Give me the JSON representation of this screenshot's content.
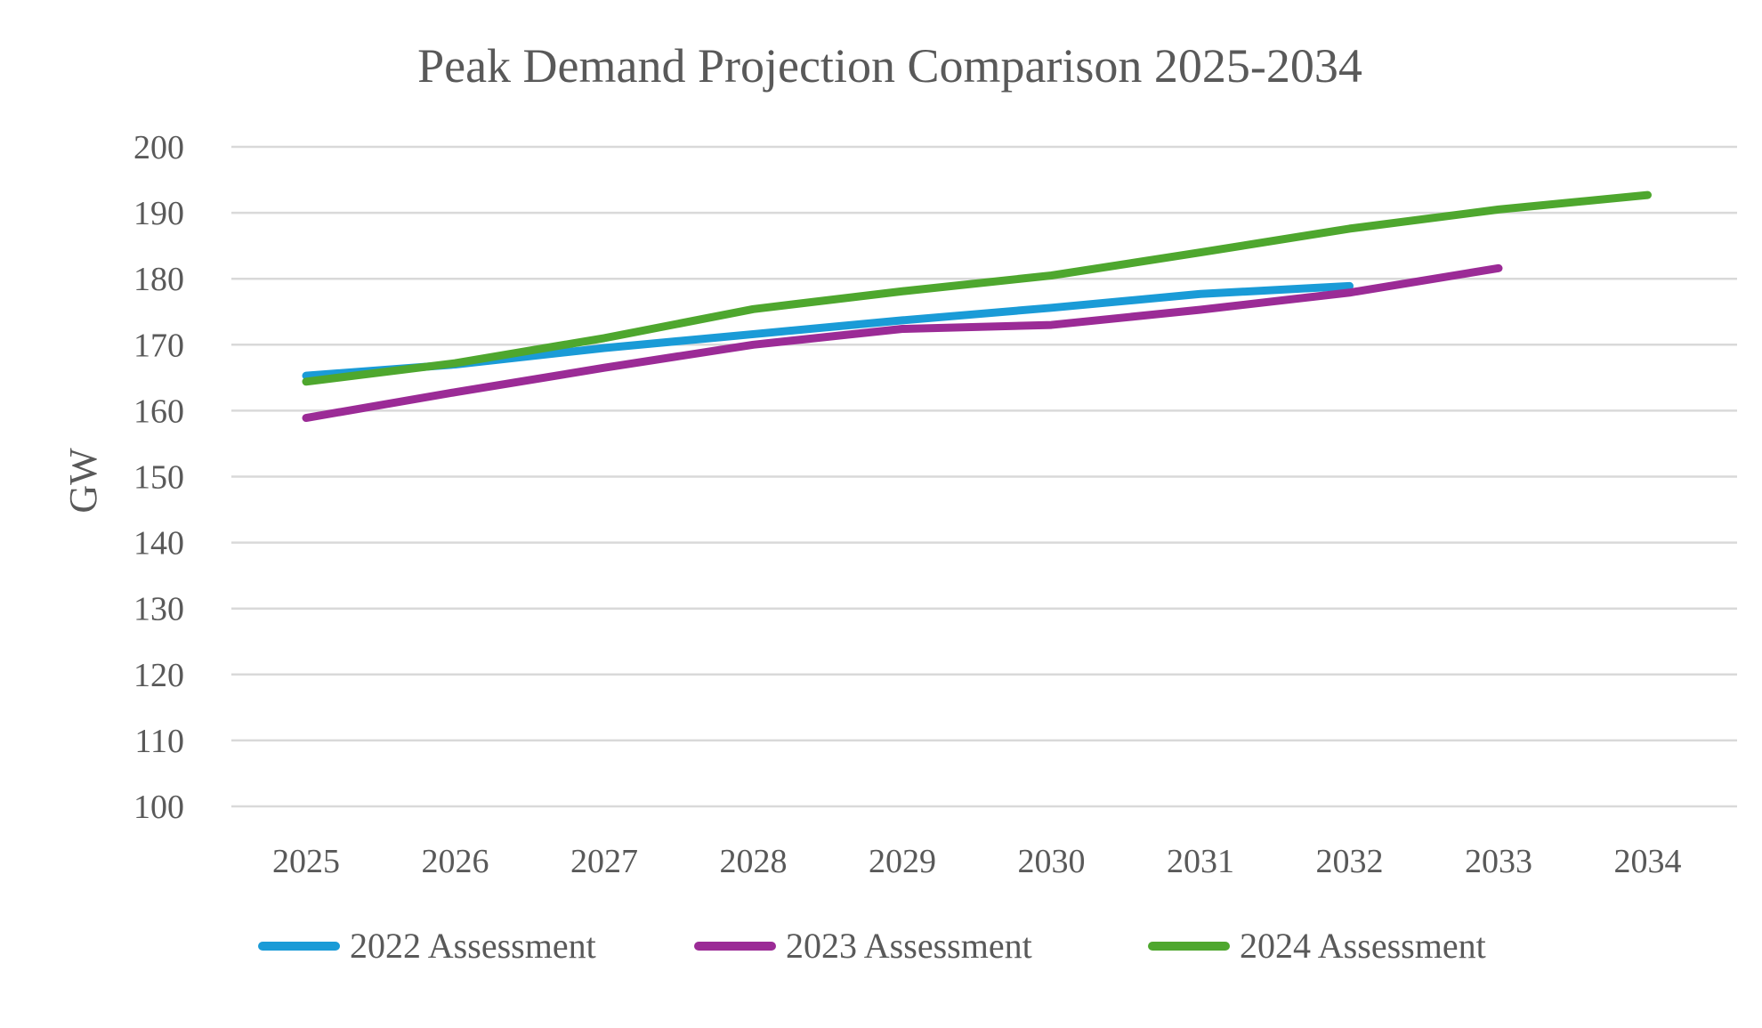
{
  "chart_data": {
    "type": "line",
    "title": "Peak Demand Projection Comparison 2025-2034",
    "xlabel": "",
    "ylabel": "GW",
    "ylim": [
      100,
      200
    ],
    "yticks": [
      100,
      110,
      120,
      130,
      140,
      150,
      160,
      170,
      180,
      190,
      200
    ],
    "grid": true,
    "legend_position": "bottom",
    "categories": [
      "2025",
      "2026",
      "2027",
      "2028",
      "2029",
      "2030",
      "2031",
      "2032",
      "2033",
      "2034"
    ],
    "series": [
      {
        "name": "2022 Assessment",
        "color": "#1a9bd7",
        "values": [
          165.3,
          167.0,
          169.5,
          171.6,
          173.7,
          175.6,
          177.7,
          178.9,
          null,
          null
        ]
      },
      {
        "name": "2023 Assessment",
        "color": "#9b2b96",
        "values": [
          158.9,
          162.8,
          166.5,
          170.0,
          172.4,
          173.0,
          175.3,
          177.9,
          181.6,
          null
        ]
      },
      {
        "name": "2024 Assessment",
        "color": "#4ea72e",
        "values": [
          164.4,
          167.2,
          171.0,
          175.4,
          178.1,
          180.5,
          184.0,
          187.6,
          190.5,
          192.7
        ]
      }
    ]
  }
}
